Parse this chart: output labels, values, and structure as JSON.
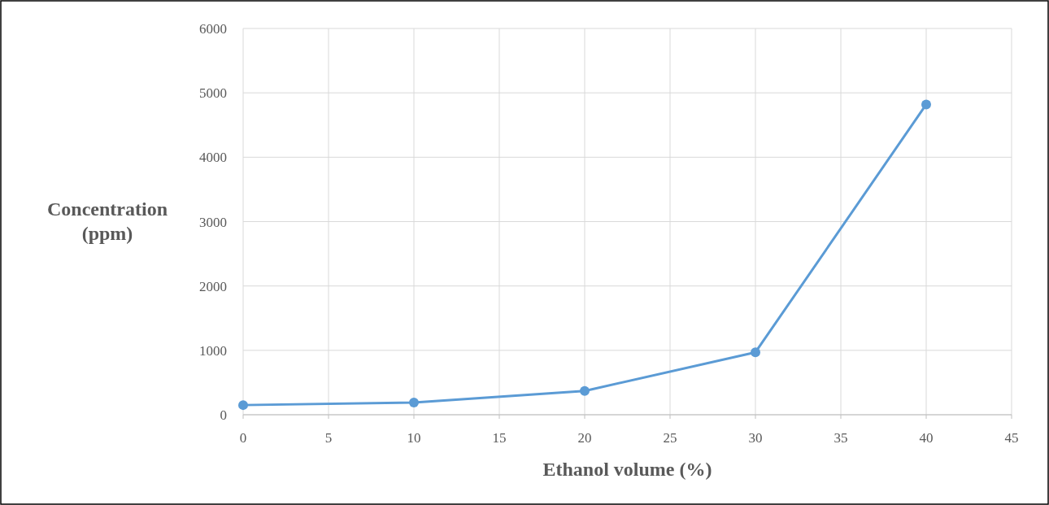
{
  "chart_data": {
    "type": "line",
    "xlabel": "Ethanol volume (%)",
    "ylabel": "Concentration (ppm)",
    "x": [
      0,
      10,
      20,
      30,
      40
    ],
    "series": [
      {
        "color": "#5b9bd5",
        "values": [
          150,
          190,
          370,
          970,
          4820
        ]
      }
    ],
    "xlim": [
      0,
      45
    ],
    "xticks": [
      0,
      5,
      10,
      15,
      20,
      25,
      30,
      35,
      40,
      45
    ],
    "ylim": [
      0,
      6000
    ],
    "yticks": [
      0,
      1000,
      2000,
      3000,
      4000,
      5000,
      6000
    ],
    "grid": true,
    "marker": "circle",
    "line_style": "solid"
  }
}
